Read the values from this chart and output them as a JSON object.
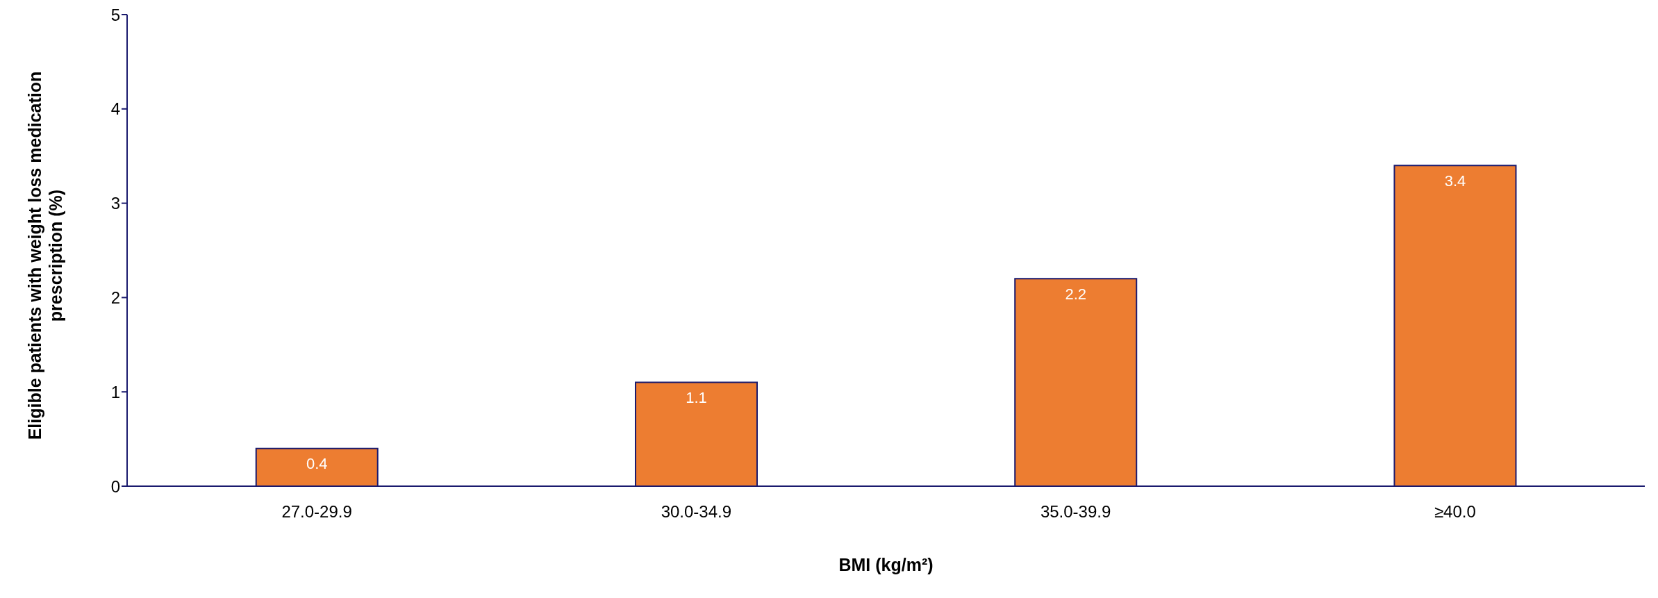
{
  "chart_data": {
    "type": "bar",
    "xlabel": "BMI (kg/m²)",
    "ylabel": "Eligible patients with weight loss medication prescription (%)",
    "categories": [
      "27.0-29.9",
      "30.0-34.9",
      "35.0-39.9",
      "≥40.0"
    ],
    "values": [
      0.4,
      1.1,
      2.2,
      3.4
    ],
    "color": "#ed7d31",
    "ylim": [
      0,
      5
    ],
    "yticks": [
      0,
      1,
      2,
      3,
      4,
      5
    ],
    "data_labels": true,
    "grid": false,
    "legend": false
  }
}
